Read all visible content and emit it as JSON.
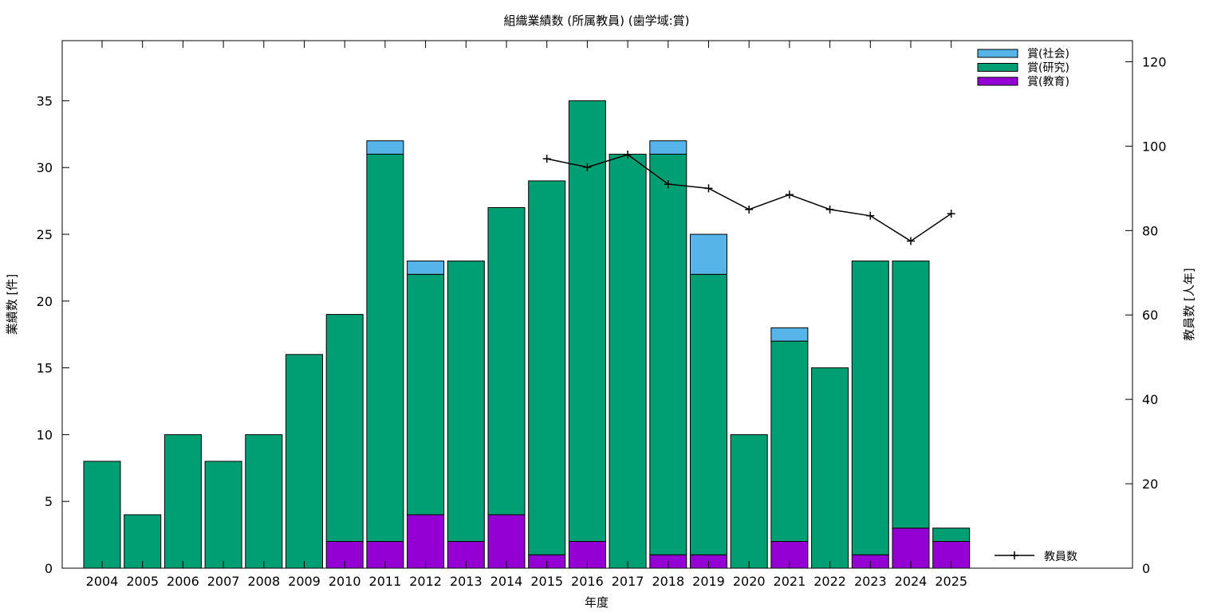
{
  "chart_data": {
    "type": "bar",
    "stacked": true,
    "title": "組織業績数 (所属教員) (歯学域:賞)",
    "xlabel": "年度",
    "ylabel": "業績数 [件]",
    "y2label": "教員数 [人年]",
    "ylim": [
      0,
      39.5
    ],
    "y2lim": [
      0,
      125
    ],
    "yticks": [
      0,
      5,
      10,
      15,
      20,
      25,
      30,
      35
    ],
    "y2ticks": [
      0,
      20,
      40,
      60,
      80,
      100,
      120
    ],
    "categories": [
      "2004",
      "2005",
      "2006",
      "2007",
      "2008",
      "2009",
      "2010",
      "2011",
      "2012",
      "2013",
      "2014",
      "2015",
      "2016",
      "2017",
      "2018",
      "2019",
      "2020",
      "2021",
      "2022",
      "2023",
      "2024",
      "2025"
    ],
    "series": [
      {
        "name": "賞(教育)",
        "color": "#9400d3",
        "values": [
          0,
          0,
          0,
          0,
          0,
          0,
          2,
          2,
          4,
          2,
          4,
          1,
          2,
          0,
          1,
          1,
          0,
          2,
          0,
          1,
          3,
          2
        ]
      },
      {
        "name": "賞(研究)",
        "color": "#009e73",
        "values": [
          8,
          4,
          10,
          8,
          10,
          16,
          17,
          29,
          18,
          21,
          23,
          28,
          33,
          31,
          30,
          21,
          10,
          15,
          15,
          22,
          20,
          1
        ]
      },
      {
        "name": "賞(社会)",
        "color": "#56b4e9",
        "values": [
          0,
          0,
          0,
          0,
          0,
          0,
          0,
          1,
          1,
          0,
          0,
          0,
          0,
          0,
          1,
          3,
          0,
          1,
          0,
          0,
          0,
          0
        ]
      }
    ],
    "line_series": {
      "name": "教員数",
      "axis": "y2",
      "color": "#000000",
      "x": [
        "2015",
        "2016",
        "2017",
        "2018",
        "2019",
        "2020",
        "2021",
        "2022",
        "2023",
        "2024",
        "2025"
      ],
      "values": [
        97,
        95,
        98,
        91,
        90,
        85,
        88.5,
        85,
        83.5,
        77.5,
        84
      ]
    },
    "legend_position": "top-right",
    "grid": false
  }
}
